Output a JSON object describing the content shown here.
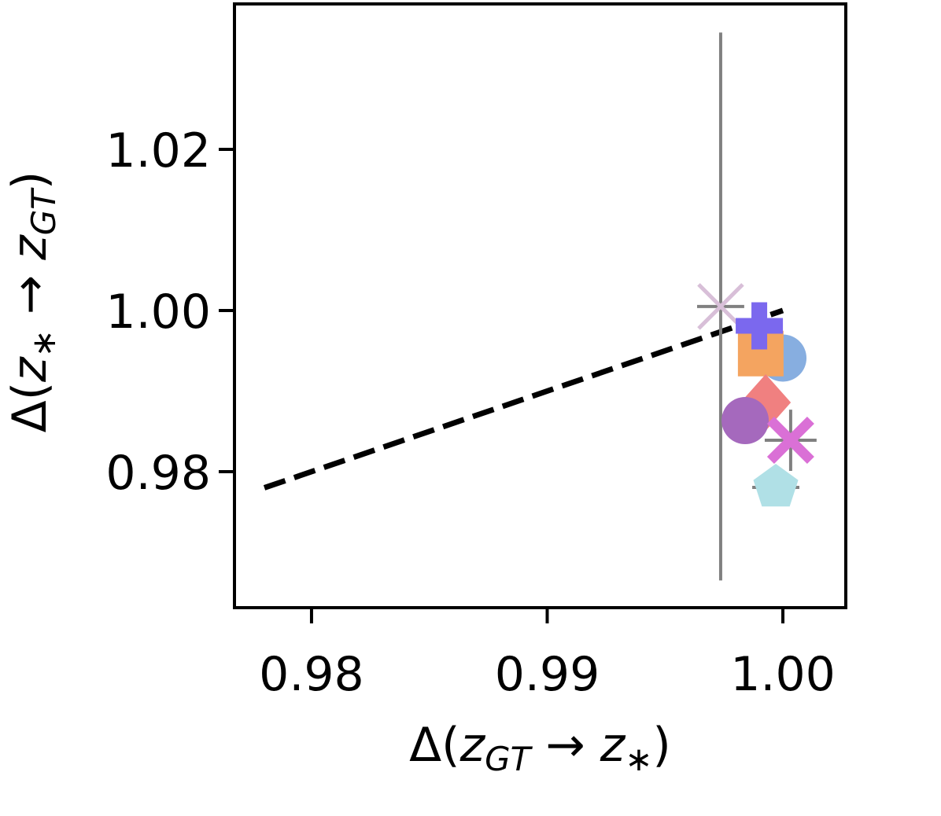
{
  "chart_data": {
    "type": "scatter",
    "xlabel": [
      "Δ(",
      "z",
      "GT",
      " → ",
      "z",
      "∗",
      ")"
    ],
    "ylabel": [
      "Δ(",
      "z",
      "∗",
      " → ",
      "z",
      "GT",
      ")"
    ],
    "label_styles": [
      "normal",
      "italic",
      "sub",
      "normal",
      "italic",
      "sub",
      "normal"
    ],
    "xlim": [
      0.97673,
      1.00267
    ],
    "ylim": [
      0.96312,
      1.03805
    ],
    "xticks": [
      0.98,
      0.99,
      {
        "value": 1,
        "label": "1.00"
      }
    ],
    "yticks": [
      0.98,
      {
        "value": 1,
        "label": "1.00"
      },
      1.02
    ],
    "reference_line": {
      "x": [
        0.978,
        1.0
      ],
      "y": [
        0.978,
        1.0
      ],
      "color": "#000000"
    },
    "errorbar_color": "#808080",
    "points": [
      {
        "marker": "x",
        "color": "#d8bfd8",
        "x": 0.99736,
        "y": 1.0005,
        "xerr": 0.001,
        "yerr": 0.034
      },
      {
        "marker": "o",
        "color": "#87aee0",
        "x": 1.0,
        "y": 0.9941,
        "xerr": 0.0007,
        "yerr": 0.0015
      },
      {
        "marker": "s",
        "color": "#f4a460",
        "x": 0.99906,
        "y": 0.99466,
        "xerr": 0.0004,
        "yerr": 0.0008
      },
      {
        "marker": "P",
        "color": "#7b68ee",
        "x": 0.999,
        "y": 0.9981,
        "xerr": 0.0004,
        "yerr": 0.0006
      },
      {
        "marker": "D",
        "color": "#f08080",
        "x": 0.99927,
        "y": 0.98859,
        "xerr": 0.0005,
        "yerr": 0.001
      },
      {
        "marker": "o",
        "color": "#a569bd",
        "x": 0.9984,
        "y": 0.98634,
        "xerr": 0.0003,
        "yerr": 0.0005
      },
      {
        "marker": "X",
        "color": "#da70d6",
        "x": 1.00033,
        "y": 0.9839,
        "xerr": 0.0011,
        "yerr": 0.0038
      },
      {
        "marker": "p",
        "color": "#b0e0e6",
        "x": 0.9997,
        "y": 0.97805,
        "xerr": 0.001,
        "yerr": 0.0005
      }
    ]
  }
}
